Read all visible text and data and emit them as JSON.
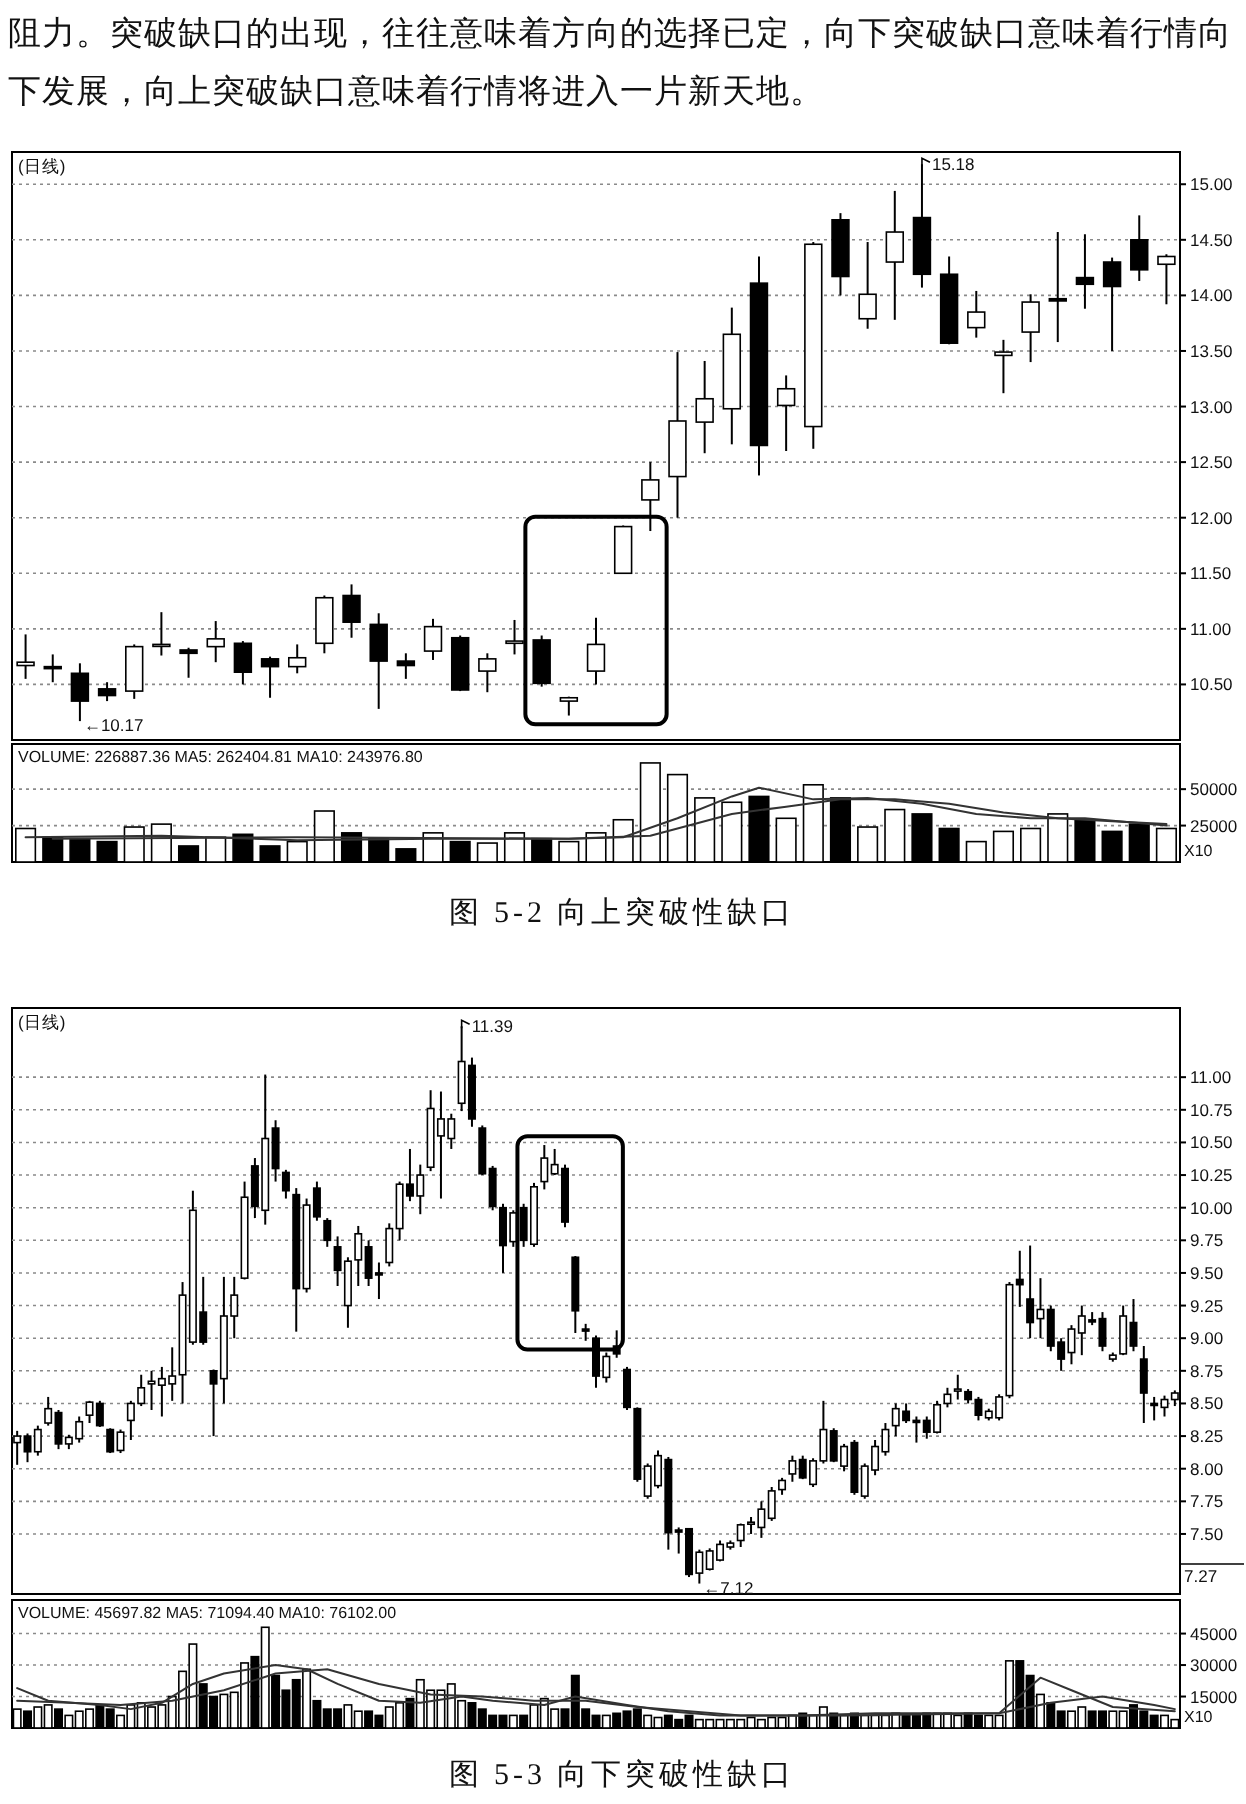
{
  "chart_data": [
    {
      "type": "candlestick",
      "title": "(日线)",
      "categories": [
        null,
        null,
        null,
        null,
        null,
        null,
        null,
        null,
        null,
        null,
        null,
        null,
        null,
        null,
        null,
        null,
        null,
        null,
        null,
        null,
        null,
        null,
        null,
        null,
        null,
        null,
        null,
        null,
        null,
        null,
        null,
        null,
        null,
        null,
        null,
        null,
        null,
        null,
        null,
        null,
        null,
        null,
        null
      ],
      "ohlc": [
        [
          10.67,
          10.95,
          10.55,
          10.7
        ],
        [
          10.66,
          10.77,
          10.52,
          10.65
        ],
        [
          10.6,
          10.69,
          10.17,
          10.35
        ],
        [
          10.46,
          10.52,
          10.35,
          10.4
        ],
        [
          10.44,
          10.86,
          10.37,
          10.84
        ],
        [
          10.85,
          11.15,
          10.76,
          10.86
        ],
        [
          10.81,
          10.83,
          10.56,
          10.78
        ],
        [
          10.84,
          11.07,
          10.7,
          10.91
        ],
        [
          10.87,
          10.89,
          10.5,
          10.61
        ],
        [
          10.73,
          10.75,
          10.38,
          10.66
        ],
        [
          10.66,
          10.86,
          10.6,
          10.74
        ],
        [
          10.87,
          11.3,
          10.78,
          11.28
        ],
        [
          11.3,
          11.4,
          10.92,
          11.06
        ],
        [
          11.04,
          11.14,
          10.28,
          10.71
        ],
        [
          10.71,
          10.78,
          10.55,
          10.67
        ],
        [
          10.8,
          11.09,
          10.72,
          11.02
        ],
        [
          10.92,
          10.94,
          10.44,
          10.45
        ],
        [
          10.62,
          10.78,
          10.43,
          10.73
        ],
        [
          10.87,
          11.08,
          10.77,
          10.89
        ],
        [
          10.9,
          10.94,
          10.48,
          10.51
        ],
        [
          10.35,
          10.39,
          10.22,
          10.38
        ],
        [
          10.62,
          11.1,
          10.5,
          10.86
        ],
        [
          11.5,
          11.93,
          11.5,
          11.92
        ],
        [
          12.16,
          12.5,
          11.88,
          12.34
        ],
        [
          12.37,
          13.49,
          12.0,
          12.87
        ],
        [
          12.86,
          13.41,
          12.58,
          13.07
        ],
        [
          12.98,
          13.89,
          12.66,
          13.65
        ],
        [
          14.11,
          14.35,
          12.38,
          12.65
        ],
        [
          13.01,
          13.28,
          12.6,
          13.16
        ],
        [
          12.82,
          14.48,
          12.62,
          14.46
        ],
        [
          14.68,
          14.74,
          14.0,
          14.17
        ],
        [
          13.79,
          14.48,
          13.7,
          14.01
        ],
        [
          14.3,
          14.94,
          13.78,
          14.57
        ],
        [
          14.7,
          15.18,
          14.07,
          14.19
        ],
        [
          14.19,
          14.35,
          13.56,
          13.57
        ],
        [
          13.71,
          14.04,
          13.62,
          13.85
        ],
        [
          13.46,
          13.6,
          13.12,
          13.49
        ],
        [
          13.67,
          14.01,
          13.4,
          13.94
        ],
        [
          13.97,
          14.57,
          13.58,
          13.95
        ],
        [
          14.16,
          14.55,
          13.88,
          14.1
        ],
        [
          14.3,
          14.34,
          13.5,
          14.08
        ],
        [
          14.5,
          14.72,
          14.13,
          14.23
        ],
        [
          14.28,
          14.37,
          13.92,
          14.35
        ]
      ],
      "ylim": [
        10.0,
        15.29
      ],
      "yticks": [
        {
          "value": 10.5,
          "label": "10.50"
        },
        {
          "value": 11,
          "label": "11.00"
        },
        {
          "value": 11.5,
          "label": "11.50"
        },
        {
          "value": 12,
          "label": "12.00"
        },
        {
          "value": 12.5,
          "label": "12.50"
        },
        {
          "value": 13,
          "label": "13.00"
        },
        {
          "value": 13.5,
          "label": "13.50"
        },
        {
          "value": 14,
          "label": "14.00"
        },
        {
          "value": 14.5,
          "label": "14.50"
        },
        {
          "value": 15,
          "label": "15.00"
        }
      ],
      "grid": "y",
      "annotations": [
        "阻力。突破缺口的出现，往往意味着方向的选择已定，向下突破缺口意味着行情向下发展，向上突破缺口意味着行情将进入一片新天地。",
        "15.18",
        "←10.17"
      ]
    },
    {
      "type": "bar",
      "categories": [
        null,
        null,
        null,
        null,
        null,
        null,
        null,
        null,
        null,
        null,
        null,
        null,
        null,
        null,
        null,
        null,
        null,
        null,
        null,
        null,
        null,
        null,
        null,
        null,
        null,
        null,
        null,
        null,
        null,
        null,
        null,
        null,
        null,
        null,
        null,
        null,
        null,
        null,
        null,
        null,
        null,
        null,
        null
      ],
      "series": [
        {
          "values": [
            23000,
            17000,
            16000,
            14000,
            24000,
            26000,
            11000,
            17000,
            19000,
            11000,
            14000,
            35000,
            20000,
            16000,
            9000,
            20000,
            14000,
            13000,
            20000,
            16000,
            14000,
            20000,
            29000,
            68000,
            60000,
            44000,
            41000,
            45000,
            30000,
            53000,
            44000,
            24000,
            36000,
            33000,
            23000,
            14000,
            21000,
            23000,
            33000,
            29000,
            21000,
            26000,
            23000
          ],
          "colors": [
            "#ffffff",
            "#000000",
            "#000000",
            "#000000",
            "#ffffff",
            "#ffffff",
            "#000000",
            "#ffffff",
            "#000000",
            "#000000",
            "#ffffff",
            "#ffffff",
            "#000000",
            "#000000",
            "#000000",
            "#ffffff",
            "#000000",
            "#ffffff",
            "#ffffff",
            "#000000",
            "#ffffff",
            "#ffffff",
            "#ffffff",
            "#ffffff",
            "#ffffff",
            "#ffffff",
            "#ffffff",
            "#000000",
            "#ffffff",
            "#ffffff",
            "#000000",
            "#ffffff",
            "#ffffff",
            "#000000",
            "#000000",
            "#ffffff",
            "#ffffff",
            "#ffffff",
            "#ffffff",
            "#000000",
            "#000000",
            "#000000",
            "#ffffff"
          ]
        },
        {
          "type": "line",
          "color": "#333333",
          "values": [
            17000,
            null,
            null,
            null,
            null,
            18000,
            null,
            null,
            null,
            null,
            15000,
            null,
            null,
            null,
            null,
            16000,
            null,
            null,
            null,
            null,
            16000,
            null,
            17000,
            null,
            30000,
            null,
            45000,
            51000,
            null,
            43000,
            null,
            44000,
            null,
            40000,
            null,
            33000,
            null,
            30000,
            null,
            30000,
            null,
            null,
            25000
          ]
        },
        {
          "type": "line",
          "color": "#333333",
          "values": [
            null,
            16000,
            null,
            null,
            null,
            null,
            null,
            null,
            null,
            null,
            17000,
            null,
            null,
            null,
            null,
            null,
            null,
            null,
            null,
            null,
            16000,
            null,
            null,
            18000,
            null,
            null,
            33000,
            null,
            38000,
            null,
            43000,
            null,
            43000,
            null,
            40000,
            null,
            34000,
            null,
            30000,
            null,
            28000,
            null,
            26000
          ]
        }
      ],
      "ylim": [
        0,
        81000
      ],
      "yticks": [
        25000,
        50000
      ],
      "grid": "y",
      "annotations": [
        "VOLUME: 226887.36 MA5: 262404.81 MA10: 243976.80",
        "X10",
        "图 5-2  向上突破性缺口"
      ]
    },
    {
      "type": "candlestick",
      "title": "(日线)",
      "categories": [
        null,
        null,
        null,
        null,
        null,
        null,
        null,
        null,
        null,
        null,
        null,
        null,
        null,
        null,
        null,
        null,
        null,
        null,
        null,
        null,
        null,
        null,
        null,
        null,
        null,
        null,
        null,
        null,
        null,
        null,
        null,
        null,
        null,
        null,
        null,
        null,
        null,
        null,
        null,
        null,
        null,
        null,
        null,
        null,
        null,
        null,
        null,
        null,
        null,
        null,
        null,
        null,
        null,
        null,
        null,
        null,
        null,
        null,
        null,
        null,
        null,
        null,
        null,
        null,
        null,
        null,
        null,
        null,
        null,
        null,
        null,
        null,
        null,
        null,
        null,
        null,
        null,
        null,
        null,
        null,
        null,
        null,
        null,
        null,
        null,
        null,
        null,
        null,
        null,
        null,
        null,
        null,
        null,
        null,
        null,
        null,
        null,
        null,
        null,
        null,
        null,
        null,
        null,
        null,
        null,
        null,
        null,
        null,
        null,
        null,
        null,
        null,
        null
      ],
      "ohlc": [
        [
          8.2,
          8.29,
          8.03,
          8.25
        ],
        [
          8.25,
          8.27,
          8.05,
          8.13
        ],
        [
          8.13,
          8.33,
          8.1,
          8.3
        ],
        [
          8.35,
          8.55,
          8.33,
          8.46
        ],
        [
          8.43,
          8.45,
          8.15,
          8.19
        ],
        [
          8.19,
          8.26,
          8.15,
          8.24
        ],
        [
          8.23,
          8.4,
          8.2,
          8.36
        ],
        [
          8.41,
          8.52,
          8.35,
          8.51
        ],
        [
          8.5,
          8.52,
          8.32,
          8.33
        ],
        [
          8.3,
          8.31,
          8.12,
          8.13
        ],
        [
          8.14,
          8.3,
          8.12,
          8.28
        ],
        [
          8.37,
          8.52,
          8.22,
          8.5
        ],
        [
          8.5,
          8.72,
          8.48,
          8.62
        ],
        [
          8.65,
          8.75,
          8.45,
          8.67
        ],
        [
          8.64,
          8.78,
          8.4,
          8.69
        ],
        [
          8.65,
          8.93,
          8.52,
          8.71
        ],
        [
          8.72,
          9.43,
          8.5,
          9.33
        ],
        [
          8.97,
          10.13,
          8.95,
          9.98
        ],
        [
          9.2,
          9.47,
          8.95,
          8.97
        ],
        [
          8.75,
          8.76,
          8.25,
          8.65
        ],
        [
          8.69,
          9.47,
          8.5,
          9.17
        ],
        [
          9.17,
          9.47,
          9.0,
          9.33
        ],
        [
          9.46,
          10.2,
          9.45,
          10.08
        ],
        [
          10.32,
          10.38,
          9.92,
          10.01
        ],
        [
          9.98,
          11.02,
          9.87,
          10.53
        ],
        [
          10.61,
          10.67,
          10.2,
          10.3
        ],
        [
          10.27,
          10.29,
          10.07,
          10.13
        ],
        [
          10.1,
          10.15,
          9.05,
          9.38
        ],
        [
          9.38,
          10.07,
          9.35,
          10.02
        ],
        [
          10.15,
          10.2,
          9.9,
          9.93
        ],
        [
          9.9,
          9.92,
          9.7,
          9.75
        ],
        [
          9.7,
          9.78,
          9.4,
          9.52
        ],
        [
          9.25,
          9.62,
          9.08,
          9.59
        ],
        [
          9.6,
          9.86,
          9.4,
          9.8
        ],
        [
          9.7,
          9.75,
          9.4,
          9.46
        ],
        [
          9.5,
          9.58,
          9.3,
          9.49
        ],
        [
          9.58,
          9.88,
          9.55,
          9.84
        ],
        [
          9.84,
          10.2,
          9.75,
          10.18
        ],
        [
          10.18,
          10.45,
          10.05,
          10.09
        ],
        [
          10.09,
          10.33,
          9.95,
          10.25
        ],
        [
          10.31,
          10.9,
          10.28,
          10.76
        ],
        [
          10.55,
          10.89,
          10.07,
          10.68
        ],
        [
          10.53,
          10.72,
          10.45,
          10.68
        ],
        [
          10.8,
          11.39,
          10.74,
          11.12
        ],
        [
          11.09,
          11.15,
          10.62,
          10.68
        ],
        [
          10.61,
          10.63,
          10.25,
          10.26
        ],
        [
          10.3,
          10.32,
          9.98,
          10.01
        ],
        [
          10.0,
          10.03,
          9.5,
          9.71
        ],
        [
          9.74,
          9.98,
          9.7,
          9.96
        ],
        [
          10.0,
          10.03,
          9.7,
          9.75
        ],
        [
          9.72,
          10.19,
          9.7,
          10.16
        ],
        [
          10.2,
          10.48,
          10.14,
          10.38
        ],
        [
          10.26,
          10.45,
          10.25,
          10.33
        ],
        [
          10.3,
          10.33,
          9.85,
          9.89
        ],
        [
          9.62,
          9.63,
          9.04,
          9.21
        ],
        [
          9.07,
          9.11,
          8.98,
          9.06
        ],
        [
          9.0,
          9.02,
          8.62,
          8.71
        ],
        [
          8.7,
          8.89,
          8.66,
          8.86
        ],
        [
          8.94,
          9.06,
          8.85,
          8.88
        ],
        [
          8.76,
          8.78,
          8.45,
          8.47
        ],
        [
          8.46,
          8.47,
          7.9,
          7.92
        ],
        [
          7.79,
          8.04,
          7.77,
          8.02
        ],
        [
          7.87,
          8.14,
          7.85,
          8.1
        ],
        [
          8.07,
          8.09,
          7.38,
          7.51
        ],
        [
          7.53,
          7.55,
          7.35,
          7.52
        ],
        [
          7.54,
          7.54,
          7.17,
          7.19
        ],
        [
          7.2,
          7.38,
          7.12,
          7.36
        ],
        [
          7.23,
          7.39,
          7.22,
          7.37
        ],
        [
          7.3,
          7.45,
          7.29,
          7.42
        ],
        [
          7.4,
          7.45,
          7.38,
          7.43
        ],
        [
          7.45,
          7.58,
          7.4,
          7.57
        ],
        [
          7.58,
          7.63,
          7.5,
          7.59
        ],
        [
          7.55,
          7.75,
          7.47,
          7.69
        ],
        [
          7.62,
          7.86,
          7.6,
          7.83
        ],
        [
          7.84,
          7.93,
          7.8,
          7.91
        ],
        [
          7.96,
          8.1,
          7.9,
          8.06
        ],
        [
          8.07,
          8.1,
          7.92,
          7.93
        ],
        [
          7.88,
          8.08,
          7.86,
          8.06
        ],
        [
          8.06,
          8.52,
          8.04,
          8.3
        ],
        [
          8.29,
          8.31,
          8.05,
          8.06
        ],
        [
          8.02,
          8.19,
          7.98,
          8.17
        ],
        [
          8.2,
          8.22,
          7.8,
          7.82
        ],
        [
          7.79,
          8.04,
          7.77,
          8.02
        ],
        [
          7.99,
          8.22,
          7.95,
          8.17
        ],
        [
          8.13,
          8.35,
          8.1,
          8.3
        ],
        [
          8.33,
          8.5,
          8.25,
          8.46
        ],
        [
          8.44,
          8.5,
          8.35,
          8.37
        ],
        [
          8.37,
          8.4,
          8.2,
          8.36
        ],
        [
          8.37,
          8.4,
          8.23,
          8.28
        ],
        [
          8.28,
          8.52,
          8.27,
          8.49
        ],
        [
          8.5,
          8.62,
          8.47,
          8.57
        ],
        [
          8.61,
          8.72,
          8.53,
          8.61
        ],
        [
          8.59,
          8.61,
          8.5,
          8.53
        ],
        [
          8.53,
          8.55,
          8.37,
          8.41
        ],
        [
          8.39,
          8.46,
          8.37,
          8.44
        ],
        [
          8.39,
          8.57,
          8.37,
          8.55
        ],
        [
          8.56,
          9.43,
          8.54,
          9.41
        ],
        [
          9.45,
          9.67,
          9.24,
          9.41
        ],
        [
          9.3,
          9.71,
          9.0,
          9.12
        ],
        [
          9.15,
          9.46,
          9.0,
          9.22
        ],
        [
          9.22,
          9.25,
          8.9,
          8.94
        ],
        [
          8.97,
          9.0,
          8.75,
          8.84
        ],
        [
          8.89,
          9.1,
          8.8,
          9.07
        ],
        [
          9.04,
          9.25,
          8.87,
          9.17
        ],
        [
          9.14,
          9.2,
          9.1,
          9.13
        ],
        [
          9.15,
          9.2,
          8.9,
          8.94
        ],
        [
          8.84,
          8.89,
          8.82,
          8.87
        ],
        [
          8.88,
          9.25,
          8.87,
          9.17
        ],
        [
          9.12,
          9.3,
          8.9,
          8.94
        ],
        [
          8.84,
          8.94,
          8.35,
          8.58
        ],
        [
          8.5,
          8.55,
          8.37,
          8.49
        ],
        [
          8.47,
          8.56,
          8.4,
          8.53
        ],
        [
          8.53,
          8.6,
          8.48,
          8.58
        ]
      ],
      "ylim": [
        7.04,
        11.53
      ],
      "yticks": [
        {
          "value": 7.5,
          "label": "7.50"
        },
        {
          "value": 7.75,
          "label": "7.75"
        },
        {
          "value": 8,
          "label": "8.00"
        },
        {
          "value": 8.25,
          "label": "8.25"
        },
        {
          "value": 8.5,
          "label": "8.50"
        },
        {
          "value": 8.75,
          "label": "8.75"
        },
        {
          "value": 9,
          "label": "9.00"
        },
        {
          "value": 9.25,
          "label": "9.25"
        },
        {
          "value": 9.5,
          "label": "9.50"
        },
        {
          "value": 9.75,
          "label": "9.75"
        },
        {
          "value": 10,
          "label": "10.00"
        },
        {
          "value": 10.25,
          "label": "10.25"
        },
        {
          "value": 10.5,
          "label": "10.50"
        },
        {
          "value": 10.75,
          "label": "10.75"
        },
        {
          "value": 11,
          "label": "11.00"
        }
      ],
      "grid": "y",
      "ref_lines": [
        {
          "axis": "y",
          "value": 7.27,
          "label": "7.27"
        }
      ],
      "annotations": [
        "11.39",
        "←7.12"
      ]
    },
    {
      "type": "bar",
      "categories": [
        null,
        null,
        null,
        null,
        null,
        null,
        null,
        null,
        null,
        null,
        null,
        null,
        null,
        null,
        null,
        null,
        null,
        null,
        null,
        null,
        null,
        null,
        null,
        null,
        null,
        null,
        null,
        null,
        null,
        null,
        null,
        null,
        null,
        null,
        null,
        null,
        null,
        null,
        null,
        null,
        null,
        null,
        null,
        null,
        null,
        null,
        null,
        null,
        null,
        null,
        null,
        null,
        null,
        null,
        null,
        null,
        null,
        null,
        null,
        null,
        null,
        null,
        null,
        null,
        null,
        null,
        null,
        null,
        null,
        null,
        null,
        null,
        null,
        null,
        null,
        null,
        null,
        null,
        null,
        null,
        null,
        null,
        null,
        null,
        null,
        null,
        null,
        null,
        null,
        null,
        null,
        null,
        null,
        null,
        null,
        null,
        null,
        null,
        null,
        null,
        null,
        null,
        null,
        null,
        null,
        null,
        null,
        null,
        null,
        null,
        null,
        null,
        null
      ],
      "series": [
        {
          "values": [
            9000,
            8000,
            10000,
            11000,
            9000,
            6000,
            8000,
            9000,
            11000,
            9000,
            6000,
            11000,
            12000,
            10000,
            11000,
            15000,
            27000,
            40000,
            21000,
            15000,
            16000,
            17000,
            31000,
            34000,
            48000,
            25000,
            18000,
            23000,
            28000,
            13000,
            9000,
            9000,
            11000,
            8000,
            8000,
            6000,
            10000,
            12000,
            14000,
            23000,
            18000,
            18000,
            21000,
            13000,
            12000,
            9000,
            6000,
            6000,
            6000,
            6000,
            11000,
            14000,
            9000,
            9000,
            25000,
            9000,
            6000,
            6000,
            7000,
            8000,
            9000,
            6000,
            5000,
            6000,
            4000,
            6000,
            4000,
            4000,
            4000,
            4000,
            4000,
            5000,
            4000,
            5000,
            5000,
            6000,
            7000,
            6000,
            10000,
            7000,
            6000,
            7000,
            6000,
            6000,
            6000,
            7000,
            6000,
            6000,
            7000,
            7000,
            7000,
            6000,
            7000,
            6000,
            6000,
            6000,
            32000,
            32000,
            25000,
            16000,
            12000,
            8000,
            8000,
            10000,
            8000,
            8000,
            8000,
            8000,
            11000,
            8000,
            6000,
            6000,
            4000
          ],
          "colors": [
            "#ffffff",
            "#000000",
            "#ffffff",
            "#ffffff",
            "#000000",
            "#ffffff",
            "#ffffff",
            "#ffffff",
            "#000000",
            "#000000",
            "#ffffff",
            "#ffffff",
            "#ffffff",
            "#ffffff",
            "#ffffff",
            "#ffffff",
            "#ffffff",
            "#ffffff",
            "#000000",
            "#000000",
            "#ffffff",
            "#ffffff",
            "#ffffff",
            "#000000",
            "#ffffff",
            "#000000",
            "#000000",
            "#000000",
            "#ffffff",
            "#000000",
            "#000000",
            "#000000",
            "#ffffff",
            "#ffffff",
            "#000000",
            "#000000",
            "#ffffff",
            "#ffffff",
            "#000000",
            "#ffffff",
            "#ffffff",
            "#ffffff",
            "#ffffff",
            "#ffffff",
            "#000000",
            "#000000",
            "#000000",
            "#000000",
            "#ffffff",
            "#000000",
            "#ffffff",
            "#ffffff",
            "#ffffff",
            "#000000",
            "#000000",
            "#000000",
            "#000000",
            "#ffffff",
            "#000000",
            "#000000",
            "#000000",
            "#ffffff",
            "#ffffff",
            "#000000",
            "#000000",
            "#000000",
            "#ffffff",
            "#ffffff",
            "#ffffff",
            "#ffffff",
            "#ffffff",
            "#ffffff",
            "#ffffff",
            "#ffffff",
            "#ffffff",
            "#ffffff",
            "#000000",
            "#ffffff",
            "#ffffff",
            "#000000",
            "#ffffff",
            "#000000",
            "#ffffff",
            "#ffffff",
            "#ffffff",
            "#ffffff",
            "#000000",
            "#000000",
            "#000000",
            "#ffffff",
            "#ffffff",
            "#ffffff",
            "#000000",
            "#000000",
            "#ffffff",
            "#ffffff",
            "#ffffff",
            "#000000",
            "#000000",
            "#ffffff",
            "#000000",
            "#000000",
            "#ffffff",
            "#ffffff",
            "#000000",
            "#000000",
            "#ffffff",
            "#ffffff",
            "#000000",
            "#000000",
            "#000000",
            "#ffffff",
            "#ffffff"
          ]
        },
        {
          "type": "line",
          "color": "#333333",
          "values": [
            19000,
            null,
            null,
            13000,
            null,
            null,
            null,
            null,
            11000,
            null,
            null,
            9000,
            null,
            null,
            12000,
            null,
            null,
            21000,
            null,
            null,
            26000,
            null,
            null,
            null,
            null,
            30000,
            null,
            null,
            28000,
            null,
            null,
            21000,
            null,
            null,
            null,
            13000,
            null,
            null,
            null,
            12000,
            null,
            null,
            null,
            15000,
            null,
            null,
            13000,
            null,
            null,
            null,
            null,
            11000,
            null,
            null,
            15000,
            null,
            null,
            null,
            null,
            11000,
            null,
            null,
            null,
            8000,
            null,
            null,
            null,
            null,
            6000,
            null,
            null,
            null,
            null,
            null,
            null,
            null,
            6000,
            null,
            null,
            null,
            null,
            null,
            null,
            7000,
            null,
            null,
            null,
            null,
            null,
            null,
            null,
            null,
            null,
            null,
            null,
            7000,
            null,
            null,
            null,
            24000,
            null,
            null,
            18000,
            null,
            null,
            null,
            10000,
            null,
            null,
            null,
            null,
            null,
            8000
          ]
        },
        {
          "type": "line",
          "color": "#333333",
          "values": [
            13000,
            null,
            null,
            null,
            null,
            12000,
            null,
            null,
            null,
            null,
            11000,
            null,
            null,
            null,
            null,
            13000,
            null,
            null,
            null,
            null,
            18000,
            null,
            null,
            null,
            null,
            26000,
            null,
            null,
            null,
            null,
            28000,
            null,
            null,
            null,
            null,
            21000,
            null,
            null,
            null,
            null,
            16000,
            null,
            null,
            null,
            null,
            15000,
            null,
            null,
            null,
            null,
            13000,
            null,
            null,
            null,
            null,
            13000,
            null,
            null,
            null,
            null,
            10000,
            null,
            null,
            null,
            null,
            8000,
            null,
            null,
            null,
            null,
            6000,
            null,
            null,
            null,
            null,
            null,
            null,
            null,
            null,
            null,
            6000,
            null,
            null,
            null,
            null,
            null,
            null,
            null,
            null,
            null,
            null,
            null,
            null,
            null,
            null,
            7000,
            null,
            null,
            null,
            null,
            12000,
            null,
            null,
            null,
            null,
            15000,
            null,
            null,
            null,
            null,
            11000,
            null,
            9000
          ]
        }
      ],
      "ylim": [
        0,
        61000
      ],
      "yticks": [
        15000,
        30000,
        45000
      ],
      "grid": "y",
      "annotations": [
        "VOLUME: 45697.82 MA5: 71094.40 MA10: 76102.00",
        "X10",
        "图 5-3  向下突破性缺口"
      ]
    }
  ]
}
